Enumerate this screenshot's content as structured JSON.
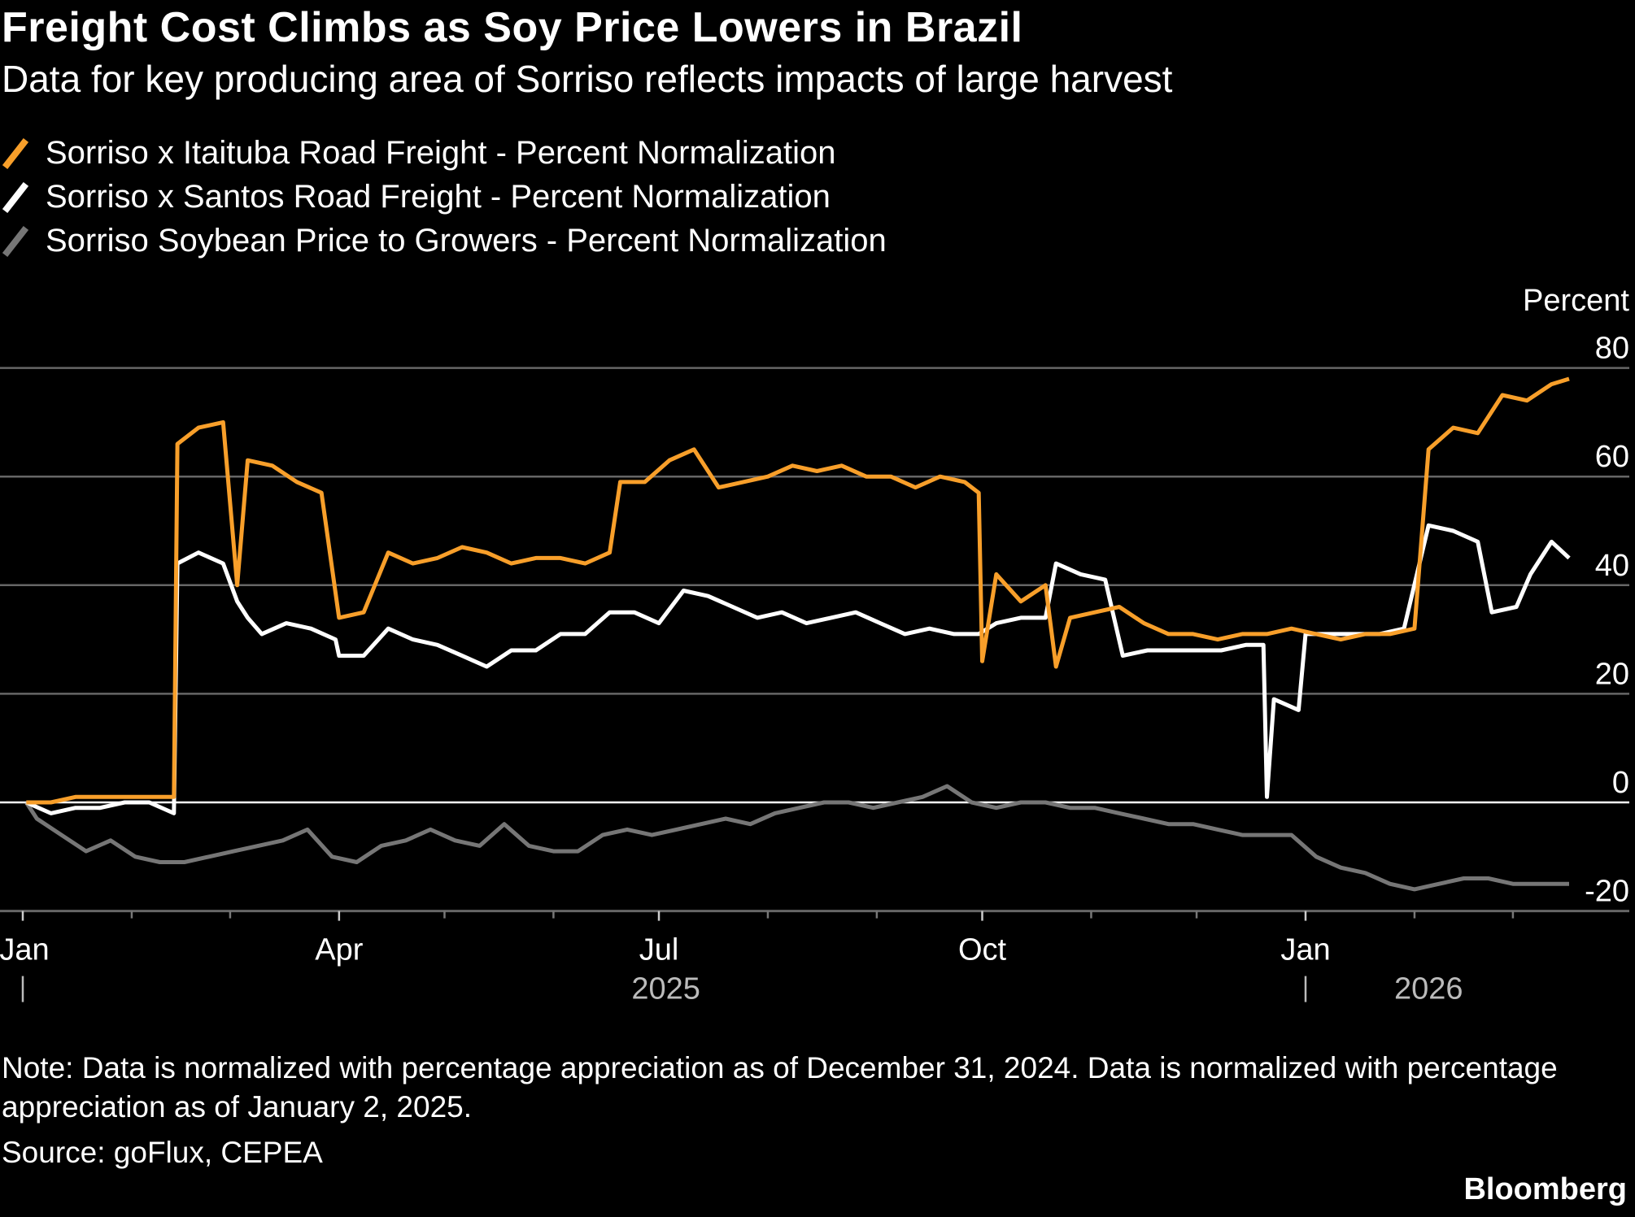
{
  "title": "Freight Cost Climbs as Soy Price Lowers in Brazil",
  "subtitle": "Data for key producing area of Sorriso reflects impacts of large harvest",
  "note": "Note: Data is normalized with percentage appreciation as of December 31, 2024. Data is normalized with percentage appreciation as of January 2, 2025.",
  "source": "Source: goFlux, CEPEA",
  "brand": "Bloomberg",
  "chart_data": {
    "type": "line",
    "ylabel": "Percent",
    "ylim": [
      -20,
      80
    ],
    "yticks": [
      "80",
      "60",
      "40",
      "20",
      "0",
      "-20"
    ],
    "ytick_values": [
      80,
      60,
      40,
      20,
      0,
      -20
    ],
    "xticks": [
      {
        "label": "Jan",
        "date": "2025-01-01"
      },
      {
        "label": "Apr",
        "date": "2025-04-01"
      },
      {
        "label": "Jul",
        "date": "2025-07-01"
      },
      {
        "label": "Oct",
        "date": "2025-10-01"
      },
      {
        "label": "Jan",
        "date": "2026-01-01"
      }
    ],
    "years": [
      {
        "label": "2025",
        "date": "2025-07-03"
      },
      {
        "label": "2026",
        "date": "2026-02-05"
      }
    ],
    "grid": true,
    "legend_position": "top-left",
    "series": [
      {
        "name": "Sorriso x Itaituba Road Freight - Percent Normalization",
        "color": "#f89f2a",
        "x": [
          "2025-01-02",
          "2025-01-09",
          "2025-01-16",
          "2025-01-23",
          "2025-01-30",
          "2025-02-06",
          "2025-02-13",
          "2025-02-14",
          "2025-02-20",
          "2025-02-27",
          "2025-03-03",
          "2025-03-06",
          "2025-03-13",
          "2025-03-20",
          "2025-03-27",
          "2025-04-01",
          "2025-04-08",
          "2025-04-15",
          "2025-04-22",
          "2025-04-29",
          "2025-05-06",
          "2025-05-13",
          "2025-05-20",
          "2025-05-27",
          "2025-06-03",
          "2025-06-10",
          "2025-06-17",
          "2025-06-20",
          "2025-06-27",
          "2025-07-04",
          "2025-07-11",
          "2025-07-18",
          "2025-07-25",
          "2025-08-01",
          "2025-08-08",
          "2025-08-15",
          "2025-08-22",
          "2025-08-29",
          "2025-09-05",
          "2025-09-12",
          "2025-09-19",
          "2025-09-26",
          "2025-09-30",
          "2025-10-01",
          "2025-10-05",
          "2025-10-12",
          "2025-10-19",
          "2025-10-22",
          "2025-10-26",
          "2025-11-02",
          "2025-11-09",
          "2025-11-16",
          "2025-11-23",
          "2025-11-30",
          "2025-12-07",
          "2025-12-14",
          "2025-12-21",
          "2025-12-28",
          "2026-01-04",
          "2026-01-11",
          "2026-01-18",
          "2026-01-25",
          "2026-02-01",
          "2026-02-05",
          "2026-02-12",
          "2026-02-19",
          "2026-02-26",
          "2026-03-05",
          "2026-03-12",
          "2026-03-17"
        ],
        "values": [
          0,
          0,
          1,
          1,
          1,
          1,
          1,
          66,
          69,
          70,
          40,
          63,
          62,
          59,
          57,
          34,
          35,
          46,
          44,
          45,
          47,
          46,
          44,
          45,
          45,
          44,
          46,
          59,
          59,
          63,
          65,
          58,
          59,
          60,
          62,
          61,
          62,
          60,
          60,
          58,
          60,
          59,
          57,
          26,
          42,
          37,
          40,
          25,
          34,
          35,
          36,
          33,
          31,
          31,
          30,
          31,
          31,
          32,
          31,
          30,
          31,
          31,
          32,
          65,
          69,
          68,
          75,
          74,
          77,
          78
        ]
      },
      {
        "name": "Sorriso x Santos Road Freight - Percent Normalization",
        "color": "#ffffff",
        "x": [
          "2025-01-02",
          "2025-01-09",
          "2025-01-16",
          "2025-01-23",
          "2025-01-30",
          "2025-02-06",
          "2025-02-13",
          "2025-02-14",
          "2025-02-20",
          "2025-02-27",
          "2025-03-03",
          "2025-03-06",
          "2025-03-10",
          "2025-03-17",
          "2025-03-24",
          "2025-03-31",
          "2025-04-01",
          "2025-04-08",
          "2025-04-15",
          "2025-04-22",
          "2025-04-29",
          "2025-05-06",
          "2025-05-13",
          "2025-05-20",
          "2025-05-27",
          "2025-06-03",
          "2025-06-10",
          "2025-06-17",
          "2025-06-24",
          "2025-07-01",
          "2025-07-08",
          "2025-07-15",
          "2025-07-22",
          "2025-07-29",
          "2025-08-05",
          "2025-08-12",
          "2025-08-19",
          "2025-08-26",
          "2025-09-02",
          "2025-09-09",
          "2025-09-16",
          "2025-09-23",
          "2025-09-30",
          "2025-10-05",
          "2025-10-12",
          "2025-10-19",
          "2025-10-22",
          "2025-10-29",
          "2025-11-05",
          "2025-11-10",
          "2025-11-17",
          "2025-11-24",
          "2025-12-01",
          "2025-12-08",
          "2025-12-15",
          "2025-12-20",
          "2025-12-21",
          "2025-12-23",
          "2025-12-30",
          "2026-01-01",
          "2026-01-08",
          "2026-01-15",
          "2026-01-22",
          "2026-01-29",
          "2026-02-05",
          "2026-02-12",
          "2026-02-19",
          "2026-02-23",
          "2026-03-02",
          "2026-03-06",
          "2026-03-12",
          "2026-03-17"
        ],
        "values": [
          0,
          -2,
          -1,
          -1,
          0,
          0,
          -2,
          44,
          46,
          44,
          37,
          34,
          31,
          33,
          32,
          30,
          27,
          27,
          32,
          30,
          29,
          27,
          25,
          28,
          28,
          31,
          31,
          35,
          35,
          33,
          39,
          38,
          36,
          34,
          35,
          33,
          34,
          35,
          33,
          31,
          32,
          31,
          31,
          33,
          34,
          34,
          44,
          42,
          41,
          27,
          28,
          28,
          28,
          28,
          29,
          29,
          1,
          19,
          17,
          31,
          31,
          31,
          31,
          32,
          51,
          50,
          48,
          35,
          36,
          42,
          48,
          45
        ]
      },
      {
        "name": "Sorriso Soybean Price to Growers - Percent Normalization",
        "color": "#767676",
        "x": [
          "2025-01-02",
          "2025-01-05",
          "2025-01-12",
          "2025-01-19",
          "2025-01-26",
          "2025-02-02",
          "2025-02-09",
          "2025-02-16",
          "2025-02-23",
          "2025-03-02",
          "2025-03-09",
          "2025-03-16",
          "2025-03-23",
          "2025-03-30",
          "2025-04-06",
          "2025-04-13",
          "2025-04-20",
          "2025-04-27",
          "2025-05-04",
          "2025-05-11",
          "2025-05-18",
          "2025-05-25",
          "2025-06-01",
          "2025-06-08",
          "2025-06-15",
          "2025-06-22",
          "2025-06-29",
          "2025-07-06",
          "2025-07-13",
          "2025-07-20",
          "2025-07-27",
          "2025-08-03",
          "2025-08-10",
          "2025-08-17",
          "2025-08-24",
          "2025-08-31",
          "2025-09-07",
          "2025-09-14",
          "2025-09-21",
          "2025-09-28",
          "2025-10-05",
          "2025-10-12",
          "2025-10-19",
          "2025-10-26",
          "2025-11-02",
          "2025-11-09",
          "2025-11-16",
          "2025-11-23",
          "2025-11-30",
          "2025-12-07",
          "2025-12-14",
          "2025-12-21",
          "2025-12-28",
          "2026-01-04",
          "2026-01-11",
          "2026-01-18",
          "2026-01-25",
          "2026-02-01",
          "2026-02-08",
          "2026-02-15",
          "2026-02-22",
          "2026-03-01",
          "2026-03-08",
          "2026-03-17"
        ],
        "values": [
          0,
          -3,
          -6,
          -9,
          -7,
          -10,
          -11,
          -11,
          -10,
          -9,
          -8,
          -7,
          -5,
          -10,
          -11,
          -8,
          -7,
          -5,
          -7,
          -8,
          -4,
          -8,
          -9,
          -9,
          -6,
          -5,
          -6,
          -5,
          -4,
          -3,
          -4,
          -2,
          -1,
          0,
          0,
          -1,
          0,
          1,
          3,
          0,
          -1,
          0,
          0,
          -1,
          -1,
          -2,
          -3,
          -4,
          -4,
          -5,
          -6,
          -6,
          -6,
          -10,
          -12,
          -13,
          -15,
          -16,
          -15,
          -14,
          -14,
          -15,
          -15,
          -15
        ]
      }
    ]
  }
}
